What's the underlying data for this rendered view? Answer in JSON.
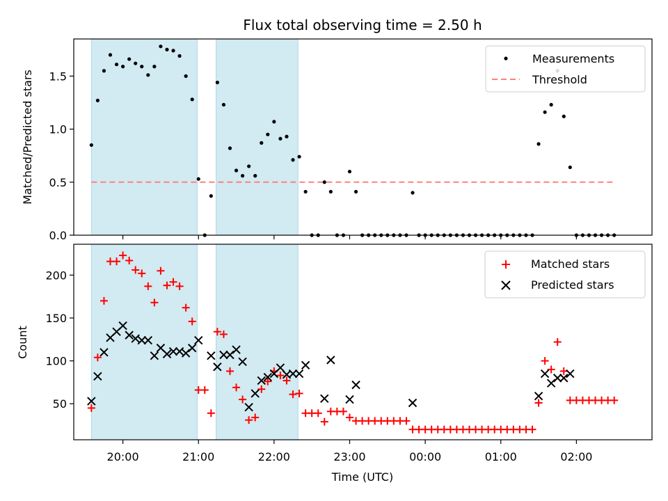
{
  "chart_data": [
    {
      "type": "scatter",
      "title": "Flux total observing time = 2.50 h",
      "xlabel": "",
      "ylabel": "Matched/Predicted stars",
      "ylim": [
        0,
        1.85
      ],
      "yticks": [
        "0.0",
        "0.5",
        "1.0",
        "1.5"
      ],
      "xlim": [
        "19:21",
        "03:00"
      ],
      "shaded_ranges": [
        [
          "19:35",
          "20:59"
        ],
        [
          "21:14",
          "22:19"
        ]
      ],
      "shade_color": "#add8e6",
      "legend_position": "upper right",
      "threshold": {
        "name": "Threshold",
        "value": 0.5,
        "x_start": "19:35",
        "x_end": "02:30",
        "color": "#ff7f7f",
        "style": "dashed"
      },
      "series": [
        {
          "name": "Measurements",
          "color": "#000000",
          "marker": "dot",
          "x": [
            "19:35",
            "19:40",
            "19:45",
            "19:50",
            "19:55",
            "20:00",
            "20:05",
            "20:10",
            "20:15",
            "20:20",
            "20:25",
            "20:30",
            "20:35",
            "20:40",
            "20:45",
            "20:50",
            "20:55",
            "21:00",
            "21:05",
            "21:10",
            "21:15",
            "21:20",
            "21:25",
            "21:30",
            "21:35",
            "21:40",
            "21:45",
            "21:50",
            "21:55",
            "22:00",
            "22:05",
            "22:10",
            "22:15",
            "22:20",
            "22:25",
            "22:30",
            "22:35",
            "22:40",
            "22:45",
            "22:50",
            "22:55",
            "23:00",
            "23:05",
            "23:10",
            "23:15",
            "23:20",
            "23:25",
            "23:30",
            "23:35",
            "23:40",
            "23:45",
            "23:50",
            "23:55",
            "00:00",
            "00:05",
            "00:10",
            "00:15",
            "00:20",
            "00:25",
            "00:30",
            "00:35",
            "00:40",
            "00:45",
            "00:50",
            "00:55",
            "01:00",
            "01:05",
            "01:10",
            "01:15",
            "01:20",
            "01:25",
            "01:30",
            "01:35",
            "01:40",
            "01:45",
            "01:50",
            "01:55",
            "02:00",
            "02:05",
            "02:10",
            "02:15",
            "02:20",
            "02:25",
            "02:30"
          ],
          "y": [
            0.85,
            1.27,
            1.55,
            1.7,
            1.61,
            1.59,
            1.66,
            1.62,
            1.59,
            1.51,
            1.59,
            1.78,
            1.75,
            1.74,
            1.69,
            1.5,
            1.28,
            0.53,
            0.0,
            0.37,
            1.44,
            1.23,
            0.82,
            0.61,
            0.56,
            0.65,
            0.56,
            0.87,
            0.95,
            1.07,
            0.91,
            0.93,
            0.71,
            0.74,
            0.41,
            0.0,
            0.0,
            0.5,
            0.41,
            0.0,
            0.0,
            0.6,
            0.41,
            0.0,
            0.0,
            0.0,
            0.0,
            0.0,
            0.0,
            0.0,
            0.0,
            0.4,
            0.0,
            0.0,
            0.0,
            0.0,
            0.0,
            0.0,
            0.0,
            0.0,
            0.0,
            0.0,
            0.0,
            0.0,
            0.0,
            0.0,
            0.0,
            0.0,
            0.0,
            0.0,
            0.0,
            0.86,
            1.16,
            1.23,
            1.55,
            1.12,
            0.64,
            0.0,
            0.0,
            0.0,
            0.0,
            0.0,
            0.0,
            0.0
          ]
        }
      ]
    },
    {
      "type": "scatter",
      "title": "",
      "xlabel": "Time (UTC)",
      "ylabel": "Count",
      "ylim": [
        8,
        236
      ],
      "yticks": [
        "50",
        "100",
        "150",
        "200"
      ],
      "xlim": [
        "19:21",
        "03:00"
      ],
      "xticks": [
        "20:00",
        "21:00",
        "22:00",
        "23:00",
        "00:00",
        "01:00",
        "02:00"
      ],
      "shaded_ranges": [
        [
          "19:35",
          "20:59"
        ],
        [
          "21:14",
          "22:19"
        ]
      ],
      "shade_color": "#add8e6",
      "legend_position": "upper right",
      "series": [
        {
          "name": "Matched stars",
          "color": "#ff0000",
          "marker": "plus",
          "x": [
            "19:35",
            "19:40",
            "19:45",
            "19:50",
            "19:55",
            "20:00",
            "20:05",
            "20:10",
            "20:15",
            "20:20",
            "20:25",
            "20:30",
            "20:35",
            "20:40",
            "20:45",
            "20:50",
            "20:55",
            "21:00",
            "21:05",
            "21:10",
            "21:15",
            "21:20",
            "21:25",
            "21:30",
            "21:35",
            "21:40",
            "21:45",
            "21:50",
            "21:55",
            "22:00",
            "22:05",
            "22:10",
            "22:15",
            "22:20",
            "22:25",
            "22:30",
            "22:35",
            "22:40",
            "22:45",
            "22:50",
            "22:55",
            "23:00",
            "23:05",
            "23:10",
            "23:15",
            "23:20",
            "23:25",
            "23:30",
            "23:35",
            "23:40",
            "23:45",
            "23:50",
            "23:55",
            "00:00",
            "00:05",
            "00:10",
            "00:15",
            "00:20",
            "00:25",
            "00:30",
            "00:35",
            "00:40",
            "00:45",
            "00:50",
            "00:55",
            "01:00",
            "01:05",
            "01:10",
            "01:15",
            "01:20",
            "01:25",
            "01:30",
            "01:35",
            "01:40",
            "01:45",
            "01:50",
            "01:55",
            "02:00",
            "02:05",
            "02:10",
            "02:15",
            "02:20",
            "02:25",
            "02:30"
          ],
          "y": [
            45,
            104,
            170,
            216,
            216,
            223,
            217,
            206,
            202,
            187,
            168,
            205,
            188,
            192,
            187,
            162,
            146,
            66,
            66,
            39,
            134,
            131,
            88,
            69,
            55,
            31,
            34,
            67,
            76,
            88,
            83,
            77,
            61,
            62,
            39,
            39,
            39,
            29,
            41,
            41,
            41,
            34,
            30,
            30,
            30,
            30,
            30,
            30,
            30,
            30,
            30,
            20,
            20,
            20,
            20,
            20,
            20,
            20,
            20,
            20,
            20,
            20,
            20,
            20,
            20,
            20,
            20,
            20,
            20,
            20,
            20,
            51,
            100,
            90,
            122,
            88,
            54,
            54,
            54,
            54,
            54,
            54,
            54,
            54
          ]
        },
        {
          "name": "Predicted stars",
          "color": "#000000",
          "marker": "x",
          "x": [
            "19:35",
            "19:40",
            "19:45",
            "19:50",
            "19:55",
            "20:00",
            "20:05",
            "20:10",
            "20:15",
            "20:20",
            "20:25",
            "20:30",
            "20:35",
            "20:40",
            "20:45",
            "20:50",
            "20:55",
            "21:00",
            "21:10",
            "21:15",
            "21:20",
            "21:25",
            "21:30",
            "21:35",
            "21:40",
            "21:45",
            "21:50",
            "21:55",
            "22:00",
            "22:05",
            "22:10",
            "22:15",
            "22:20",
            "22:25",
            "22:40",
            "22:45",
            "23:00",
            "23:05",
            "23:50",
            "01:30",
            "01:35",
            "01:40",
            "01:45",
            "01:50",
            "01:55"
          ],
          "y": [
            53,
            82,
            110,
            127,
            134,
            141,
            130,
            126,
            124,
            124,
            106,
            115,
            108,
            111,
            111,
            109,
            115,
            124,
            106,
            93,
            107,
            107,
            113,
            99,
            46,
            62,
            77,
            81,
            85,
            92,
            84,
            85,
            85,
            95,
            56,
            101,
            55,
            72,
            51,
            59,
            85,
            74,
            80,
            80,
            85
          ]
        }
      ]
    }
  ]
}
